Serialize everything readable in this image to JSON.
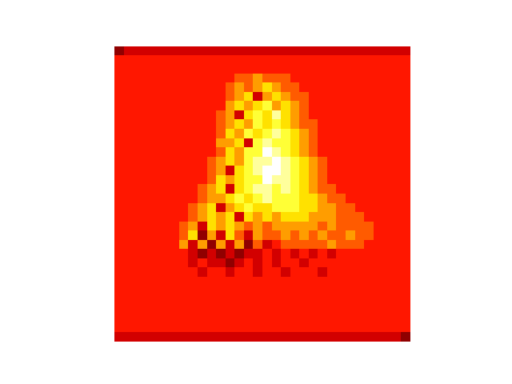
{
  "chart_data": {
    "type": "heatmap",
    "tick_labels": false,
    "color_range": [
      0,
      10
    ],
    "cells": [
      [
        2,
        3,
        3,
        3,
        3,
        3,
        3,
        3,
        3,
        3,
        3,
        3,
        3,
        3,
        3,
        3,
        3,
        3,
        3,
        3,
        3,
        3,
        3,
        3,
        3,
        3,
        3,
        3,
        3,
        3,
        3,
        3
      ],
      [
        4,
        4,
        4,
        4,
        4,
        4,
        4,
        4,
        4,
        4,
        4,
        4,
        4,
        4,
        4,
        4,
        4,
        4,
        4,
        4,
        4,
        4,
        4,
        4,
        4,
        4,
        4,
        4,
        4,
        4,
        4,
        4
      ],
      [
        4,
        4,
        4,
        4,
        4,
        4,
        4,
        4,
        4,
        4,
        4,
        4,
        4,
        4,
        4,
        4,
        4,
        4,
        4,
        4,
        4,
        4,
        4,
        4,
        4,
        4,
        4,
        4,
        4,
        4,
        4,
        4
      ],
      [
        4,
        4,
        4,
        4,
        4,
        4,
        4,
        4,
        4,
        4,
        4,
        4,
        4,
        5,
        5,
        6,
        5,
        5,
        5,
        4,
        4,
        4,
        4,
        4,
        4,
        4,
        4,
        4,
        4,
        4,
        4,
        4
      ],
      [
        4,
        4,
        4,
        4,
        4,
        4,
        4,
        4,
        4,
        4,
        4,
        4,
        5,
        6,
        5,
        6,
        7,
        6,
        5,
        5,
        4,
        4,
        4,
        4,
        4,
        4,
        4,
        4,
        4,
        4,
        4,
        4
      ],
      [
        4,
        4,
        4,
        4,
        4,
        4,
        4,
        4,
        4,
        4,
        4,
        4,
        5,
        6,
        7,
        3,
        6,
        7,
        6,
        5,
        5,
        4,
        4,
        4,
        4,
        4,
        4,
        4,
        4,
        4,
        4,
        4
      ],
      [
        4,
        4,
        4,
        4,
        4,
        4,
        4,
        4,
        4,
        4,
        4,
        4,
        6,
        7,
        6,
        7,
        8,
        6,
        7,
        6,
        5,
        4,
        4,
        4,
        4,
        4,
        4,
        4,
        4,
        4,
        4,
        4
      ],
      [
        4,
        4,
        4,
        4,
        4,
        4,
        4,
        4,
        4,
        4,
        4,
        5,
        6,
        3,
        7,
        8,
        7,
        9,
        7,
        6,
        5,
        4,
        4,
        4,
        4,
        4,
        4,
        4,
        4,
        4,
        4,
        4
      ],
      [
        4,
        4,
        4,
        4,
        4,
        4,
        4,
        4,
        4,
        4,
        4,
        5,
        6,
        7,
        6,
        8,
        7,
        8,
        7,
        6,
        5,
        5,
        4,
        4,
        4,
        4,
        4,
        4,
        4,
        4,
        4,
        4
      ],
      [
        4,
        4,
        4,
        4,
        4,
        4,
        4,
        4,
        4,
        4,
        4,
        5,
        7,
        6,
        8,
        7,
        8,
        9,
        8,
        7,
        6,
        5,
        4,
        4,
        4,
        4,
        4,
        4,
        4,
        4,
        4,
        4
      ],
      [
        4,
        4,
        4,
        4,
        4,
        4,
        4,
        4,
        4,
        4,
        4,
        6,
        6,
        7,
        3,
        8,
        9,
        8,
        8,
        7,
        6,
        5,
        4,
        4,
        4,
        4,
        4,
        4,
        4,
        4,
        4,
        4
      ],
      [
        4,
        4,
        4,
        4,
        4,
        4,
        4,
        4,
        4,
        4,
        4,
        5,
        7,
        6,
        8,
        8,
        10,
        9,
        8,
        7,
        6,
        5,
        4,
        4,
        4,
        4,
        4,
        4,
        4,
        4,
        4,
        4
      ],
      [
        4,
        4,
        4,
        4,
        4,
        4,
        4,
        4,
        4,
        4,
        5,
        6,
        7,
        6,
        8,
        9,
        9,
        10,
        9,
        8,
        7,
        6,
        5,
        4,
        4,
        4,
        4,
        4,
        4,
        4,
        4,
        4
      ],
      [
        4,
        4,
        4,
        4,
        4,
        4,
        4,
        4,
        4,
        4,
        5,
        6,
        3,
        7,
        8,
        9,
        10,
        10,
        9,
        8,
        7,
        6,
        5,
        4,
        4,
        4,
        4,
        4,
        4,
        4,
        4,
        4
      ],
      [
        4,
        4,
        4,
        4,
        4,
        4,
        4,
        4,
        4,
        4,
        5,
        7,
        6,
        7,
        8,
        8,
        10,
        9,
        9,
        8,
        7,
        6,
        5,
        4,
        4,
        4,
        4,
        4,
        4,
        4,
        4,
        4
      ],
      [
        4,
        4,
        4,
        4,
        4,
        4,
        4,
        4,
        4,
        5,
        6,
        7,
        3,
        7,
        8,
        9,
        9,
        8,
        9,
        8,
        7,
        6,
        5,
        5,
        4,
        4,
        4,
        4,
        4,
        4,
        4,
        4
      ],
      [
        4,
        4,
        4,
        4,
        4,
        4,
        4,
        4,
        4,
        5,
        6,
        6,
        7,
        8,
        7,
        8,
        9,
        8,
        8,
        8,
        7,
        7,
        6,
        5,
        5,
        4,
        4,
        4,
        4,
        4,
        4,
        4
      ],
      [
        4,
        4,
        4,
        4,
        4,
        4,
        4,
        4,
        5,
        6,
        7,
        3,
        6,
        7,
        8,
        7,
        7,
        8,
        8,
        8,
        7,
        7,
        6,
        6,
        5,
        5,
        4,
        4,
        4,
        4,
        4,
        4
      ],
      [
        4,
        4,
        4,
        4,
        4,
        4,
        4,
        4,
        5,
        6,
        7,
        6,
        7,
        3,
        7,
        6,
        7,
        6,
        7,
        7,
        7,
        6,
        6,
        6,
        5,
        5,
        5,
        4,
        4,
        4,
        4,
        4
      ],
      [
        4,
        4,
        4,
        4,
        4,
        4,
        4,
        5,
        6,
        3,
        7,
        6,
        7,
        6,
        5,
        6,
        5,
        6,
        6,
        6,
        6,
        6,
        5,
        6,
        5,
        5,
        5,
        5,
        4,
        4,
        4,
        4
      ],
      [
        4,
        4,
        4,
        4,
        4,
        4,
        4,
        5,
        7,
        2,
        6,
        3,
        7,
        5,
        3,
        6,
        5,
        5,
        6,
        5,
        6,
        5,
        6,
        5,
        5,
        6,
        5,
        5,
        4,
        4,
        4,
        4
      ],
      [
        4,
        4,
        4,
        4,
        4,
        4,
        4,
        6,
        3,
        6,
        2,
        6,
        3,
        6,
        2,
        5,
        3,
        4,
        5,
        5,
        5,
        5,
        5,
        6,
        5,
        5,
        5,
        4,
        4,
        4,
        4,
        4
      ],
      [
        4,
        4,
        4,
        4,
        4,
        4,
        4,
        4,
        3,
        2,
        3,
        2,
        3,
        2,
        3,
        3,
        4,
        3,
        4,
        3,
        4,
        3,
        4,
        3,
        4,
        4,
        4,
        4,
        4,
        4,
        4,
        4
      ],
      [
        4,
        4,
        4,
        4,
        4,
        4,
        4,
        4,
        3,
        4,
        3,
        3,
        2,
        3,
        4,
        3,
        4,
        3,
        4,
        4,
        3,
        4,
        4,
        4,
        4,
        4,
        4,
        4,
        4,
        4,
        4,
        4
      ],
      [
        4,
        4,
        4,
        4,
        4,
        4,
        4,
        4,
        4,
        3,
        4,
        4,
        3,
        4,
        4,
        3,
        4,
        4,
        3,
        4,
        4,
        4,
        3,
        4,
        4,
        4,
        4,
        4,
        4,
        4,
        4,
        4
      ],
      [
        4,
        4,
        4,
        4,
        4,
        4,
        4,
        4,
        4,
        4,
        4,
        4,
        4,
        4,
        4,
        4,
        4,
        4,
        4,
        4,
        4,
        4,
        4,
        4,
        4,
        4,
        4,
        4,
        4,
        4,
        4,
        4
      ],
      [
        4,
        4,
        4,
        4,
        4,
        4,
        4,
        4,
        4,
        4,
        4,
        4,
        4,
        4,
        4,
        4,
        4,
        4,
        4,
        4,
        4,
        4,
        4,
        4,
        4,
        4,
        4,
        4,
        4,
        4,
        4,
        4
      ],
      [
        4,
        4,
        4,
        4,
        4,
        4,
        4,
        4,
        4,
        4,
        4,
        4,
        4,
        4,
        4,
        4,
        4,
        4,
        4,
        4,
        4,
        4,
        4,
        4,
        4,
        4,
        4,
        4,
        4,
        4,
        4,
        4
      ],
      [
        4,
        4,
        4,
        4,
        4,
        4,
        4,
        4,
        4,
        4,
        4,
        4,
        4,
        4,
        4,
        4,
        4,
        4,
        4,
        4,
        4,
        4,
        4,
        4,
        4,
        4,
        4,
        4,
        4,
        4,
        4,
        4
      ],
      [
        4,
        4,
        4,
        4,
        4,
        4,
        4,
        4,
        4,
        4,
        4,
        4,
        4,
        4,
        4,
        4,
        4,
        4,
        4,
        4,
        4,
        4,
        4,
        4,
        4,
        4,
        4,
        4,
        4,
        4,
        4,
        4
      ],
      [
        4,
        4,
        4,
        4,
        4,
        4,
        4,
        4,
        4,
        4,
        4,
        4,
        4,
        4,
        4,
        4,
        4,
        4,
        4,
        4,
        4,
        4,
        4,
        4,
        4,
        4,
        4,
        4,
        4,
        4,
        4,
        4
      ],
      [
        3,
        3,
        3,
        3,
        3,
        3,
        3,
        3,
        3,
        3,
        3,
        3,
        3,
        3,
        3,
        3,
        3,
        3,
        3,
        3,
        3,
        3,
        3,
        3,
        3,
        3,
        3,
        3,
        3,
        3,
        3,
        2
      ]
    ]
  }
}
